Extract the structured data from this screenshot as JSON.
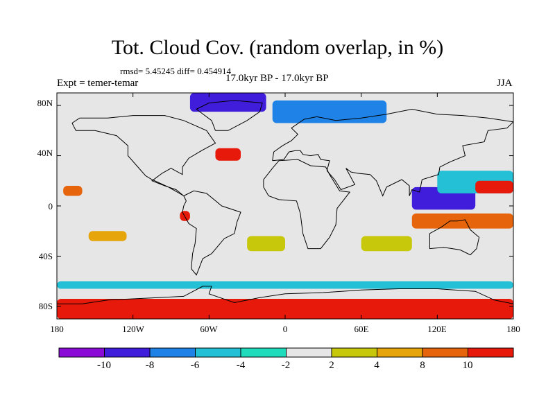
{
  "header": {
    "title": "Tot. Cloud Cov. (random overlap, in %)",
    "stats": "rmsd= 5.45245 diff= 0.454914",
    "experiment": "Expt = temer-temar",
    "period": "17.0kyr BP - 17.0kyr BP",
    "season": "JJA"
  },
  "map": {
    "lat_ticks": [
      "80N",
      "40N",
      "0",
      "40S",
      "80S"
    ],
    "lon_ticks": [
      "180",
      "120W",
      "60W",
      "0",
      "60E",
      "120E",
      "180"
    ]
  },
  "colorbar": {
    "labels": [
      "-10",
      "-8",
      "-6",
      "-4",
      "-2",
      "2",
      "4",
      "8",
      "10"
    ],
    "colors": [
      "#8a0bd6",
      "#3f1ddb",
      "#1e82e6",
      "#23c0d6",
      "#1fdcbc",
      "#e6e6e6",
      "#c7c70b",
      "#e6a50b",
      "#e6640b",
      "#e6190b"
    ]
  },
  "chart_data": {
    "type": "heatmap",
    "title": "Tot. Cloud Cov. (random overlap, in %)",
    "subtitle": "17.0kyr BP - 17.0kyr BP",
    "experiment": "Expt = temer-temar",
    "season": "JJA",
    "stats": {
      "rmsd": 5.45245,
      "diff": 0.454914
    },
    "xlim": [
      -180,
      180
    ],
    "ylim": [
      -90,
      90
    ],
    "levels": [
      -10,
      -8,
      -6,
      -4,
      -2,
      2,
      4,
      8,
      10
    ],
    "colormap": [
      "#8a0bd6",
      "#3f1ddb",
      "#1e82e6",
      "#23c0d6",
      "#1fdcbc",
      "#e6e6e6",
      "#c7c70b",
      "#e6a50b",
      "#e6640b",
      "#e6190b"
    ],
    "regions": [
      {
        "name": "southern-ocean-band",
        "lon": [
          -180,
          180
        ],
        "lat": [
          -90,
          -74
        ],
        "value": 11
      },
      {
        "name": "antarctic-coast-band",
        "lon": [
          -180,
          180
        ],
        "lat": [
          -66,
          -60
        ],
        "value": -4.5
      },
      {
        "name": "north-pacific-east-warm",
        "lon": [
          -175,
          -160
        ],
        "lat": [
          8,
          16
        ],
        "value": 9
      },
      {
        "name": "warm-pool-negative",
        "lon": [
          100,
          150
        ],
        "lat": [
          -3,
          15
        ],
        "value": -9
      },
      {
        "name": "maritime-continent-positive",
        "lon": [
          100,
          180
        ],
        "lat": [
          -18,
          -6
        ],
        "value": 9
      },
      {
        "name": "north-pacific-negative",
        "lon": [
          120,
          180
        ],
        "lat": [
          10,
          28
        ],
        "value": -5
      },
      {
        "name": "east-pacific-positive",
        "lon": [
          150,
          180
        ],
        "lat": [
          10,
          20
        ],
        "value": 11
      },
      {
        "name": "arctic-greenland-negative",
        "lon": [
          -75,
          -15
        ],
        "lat": [
          75,
          90
        ],
        "value": -9
      },
      {
        "name": "eurasia-arctic-negative",
        "lon": [
          -10,
          80
        ],
        "lat": [
          66,
          84
        ],
        "value": -8
      },
      {
        "name": "north-atlantic-positive",
        "lon": [
          -55,
          -35
        ],
        "lat": [
          36,
          46
        ],
        "value": 10
      },
      {
        "name": "south-pacific-positive",
        "lon": [
          -155,
          -125
        ],
        "lat": [
          -28,
          -20
        ],
        "value": 5
      },
      {
        "name": "south-atlantic-yellow",
        "lon": [
          -30,
          0
        ],
        "lat": [
          -36,
          -24
        ],
        "value": 3
      },
      {
        "name": "indian-ocean-yellow",
        "lon": [
          60,
          100
        ],
        "lat": [
          -36,
          -24
        ],
        "value": 3
      },
      {
        "name": "peru-red",
        "lon": [
          -83,
          -75
        ],
        "lat": [
          -12,
          -4
        ],
        "value": 11
      }
    ]
  }
}
